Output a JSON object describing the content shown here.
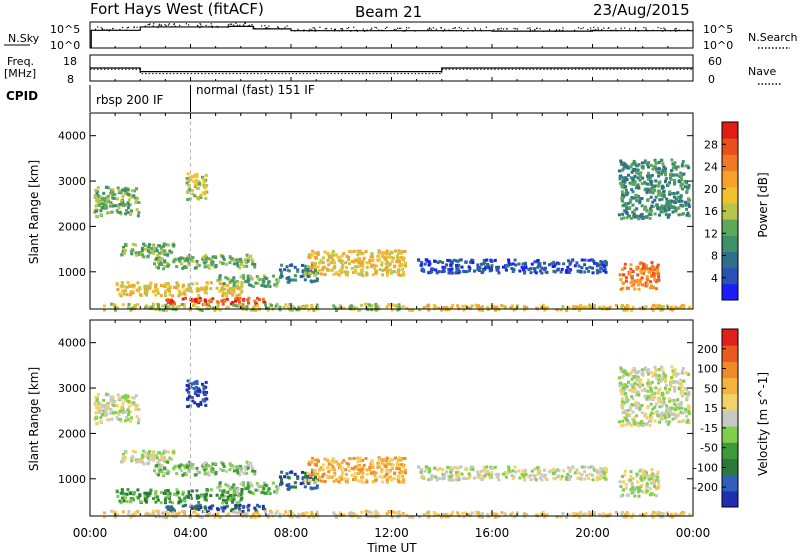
{
  "header": {
    "station": "Fort Hays West (fitACF)",
    "beam": "Beam 21",
    "date": "23/Aug/2015"
  },
  "nsky_panel": {
    "left_label": "N.Sky",
    "right_label": "N.Search",
    "left_ticks": [
      "10^5",
      "10^0"
    ],
    "right_ticks": [
      "10^5",
      "10^0"
    ]
  },
  "freq_panel": {
    "left_label_line1": "Freq.",
    "left_label_line2": "[MHz]",
    "right_label": "Nave",
    "left_ticks": [
      "18",
      "8"
    ],
    "right_ticks": [
      "60",
      "0"
    ]
  },
  "cpid": {
    "label": "CPID",
    "segments": [
      {
        "start_hour": 0,
        "end_hour": 4,
        "text": "rbsp 200 IF"
      },
      {
        "start_hour": 4,
        "end_hour": 24,
        "text": "normal (fast) 151 IF"
      }
    ]
  },
  "chart_data": [
    {
      "type": "step-line",
      "name": "N.Sky",
      "y_scale": "log",
      "ylim": [
        1,
        100000
      ],
      "x_hours": [
        0,
        0.05,
        1.9,
        2.0,
        5.5,
        6.5,
        8,
        12,
        16,
        20,
        24
      ],
      "values": [
        1,
        3000,
        3000,
        15000,
        20000,
        6000,
        2500,
        2500,
        2000,
        2500,
        2500
      ]
    },
    {
      "type": "step-line",
      "name": "Freq.",
      "unit": "MHz",
      "ylim": [
        8,
        18
      ],
      "x_hours": [
        0,
        2,
        4,
        14,
        24
      ],
      "values": [
        13.0,
        11.5,
        11.5,
        13.0,
        13.0
      ]
    },
    {
      "type": "line",
      "name": "Nave",
      "ylim": [
        0,
        60
      ],
      "x_hours": [
        0,
        2,
        4,
        14,
        24
      ],
      "values": [
        27,
        16,
        16,
        27,
        27
      ]
    },
    {
      "type": "heatmap",
      "title": "Power",
      "colorbar_label": "Power [dB]",
      "ylabel": "Slant Range [km]",
      "ylim": [
        180,
        4500
      ],
      "yticks": [
        1000,
        2000,
        3000,
        4000
      ],
      "colorbar": {
        "ticks": [
          "4",
          "8",
          "12",
          "16",
          "20",
          "24",
          "28"
        ],
        "colors": [
          "#1c1cff",
          "#2a52b4",
          "#2e6f8c",
          "#3f8f6b",
          "#5ea85a",
          "#b8c44b",
          "#f2c12e",
          "#f7a12a",
          "#f07a23",
          "#e8511c",
          "#e01e12"
        ]
      },
      "blobs": [
        {
          "t0": 0.1,
          "t1": 1.9,
          "r0": 2250,
          "r1": 2900,
          "level": 4
        },
        {
          "t0": 1.2,
          "t1": 3.3,
          "r0": 1350,
          "r1": 1650,
          "level": 4
        },
        {
          "t0": 2.5,
          "t1": 6.5,
          "r0": 1100,
          "r1": 1400,
          "level": 4
        },
        {
          "t0": 1.0,
          "t1": 6.0,
          "r0": 500,
          "r1": 800,
          "level": 6
        },
        {
          "t0": 3.0,
          "t1": 7.0,
          "r0": 300,
          "r1": 450,
          "level": 9
        },
        {
          "t0": 5.0,
          "t1": 7.5,
          "r0": 700,
          "r1": 950,
          "level": 4
        },
        {
          "t0": 7.5,
          "t1": 9.0,
          "r0": 800,
          "r1": 1200,
          "level": 2
        },
        {
          "t0": 8.5,
          "t1": 12.5,
          "r0": 950,
          "r1": 1500,
          "level": 6
        },
        {
          "t0": 3.8,
          "t1": 4.6,
          "r0": 2600,
          "r1": 3200,
          "level": 5
        },
        {
          "t0": 13.0,
          "t1": 20.5,
          "r0": 1000,
          "r1": 1300,
          "level": 1
        },
        {
          "t0": 21.0,
          "t1": 22.6,
          "r0": 650,
          "r1": 1250,
          "level": 8
        },
        {
          "t0": 21.0,
          "t1": 23.8,
          "r0": 2200,
          "r1": 3500,
          "level": 3
        },
        {
          "t0": 0.5,
          "t1": 12.5,
          "r0": 180,
          "r1": 320,
          "level": 5
        },
        {
          "t0": 12.5,
          "t1": 24.0,
          "r0": 180,
          "r1": 300,
          "level": 6
        }
      ]
    },
    {
      "type": "heatmap",
      "title": "Velocity",
      "colorbar_label": "Velocity [m s^-1]",
      "ylabel": "Slant Range [km]",
      "ylim": [
        180,
        4500
      ],
      "yticks": [
        1000,
        2000,
        3000,
        4000
      ],
      "colorbar": {
        "ticks": [
          "200",
          "100",
          "50",
          "15",
          "-15",
          "-50",
          "-100",
          "-200"
        ],
        "colors": [
          "#1f2fb0",
          "#2f5fb8",
          "#2b7a3a",
          "#3d9a3a",
          "#7fce4c",
          "#c7c7c3",
          "#f2d36a",
          "#f3b33c",
          "#f08a28",
          "#e85a1e",
          "#e0201a"
        ]
      },
      "blobs": [
        {
          "t0": 0.1,
          "t1": 1.9,
          "r0": 2250,
          "r1": 2900,
          "level": 5
        },
        {
          "t0": 1.2,
          "t1": 3.3,
          "r0": 1350,
          "r1": 1650,
          "level": 5
        },
        {
          "t0": 2.5,
          "t1": 6.5,
          "r0": 1100,
          "r1": 1400,
          "level": 4
        },
        {
          "t0": 1.0,
          "t1": 6.0,
          "r0": 500,
          "r1": 800,
          "level": 3
        },
        {
          "t0": 3.0,
          "t1": 7.0,
          "r0": 300,
          "r1": 450,
          "level": 1
        },
        {
          "t0": 5.0,
          "t1": 7.5,
          "r0": 700,
          "r1": 950,
          "level": 4
        },
        {
          "t0": 7.5,
          "t1": 9.0,
          "r0": 800,
          "r1": 1200,
          "level": 1
        },
        {
          "t0": 8.5,
          "t1": 12.5,
          "r0": 950,
          "r1": 1500,
          "level": 7
        },
        {
          "t0": 3.8,
          "t1": 4.6,
          "r0": 2600,
          "r1": 3200,
          "level": 0
        },
        {
          "t0": 13.0,
          "t1": 20.5,
          "r0": 1000,
          "r1": 1300,
          "level": 5
        },
        {
          "t0": 21.0,
          "t1": 22.6,
          "r0": 650,
          "r1": 1250,
          "level": 5
        },
        {
          "t0": 21.0,
          "t1": 23.8,
          "r0": 2200,
          "r1": 3500,
          "level": 5
        },
        {
          "t0": 0.5,
          "t1": 12.5,
          "r0": 180,
          "r1": 320,
          "level": 6
        },
        {
          "t0": 12.5,
          "t1": 24.0,
          "r0": 180,
          "r1": 300,
          "level": 6
        }
      ]
    }
  ],
  "time_axis": {
    "label": "Time UT",
    "xlim": [
      0,
      24
    ],
    "ticks": [
      "00:00",
      "04:00",
      "08:00",
      "12:00",
      "16:00",
      "20:00",
      "00:00"
    ]
  }
}
